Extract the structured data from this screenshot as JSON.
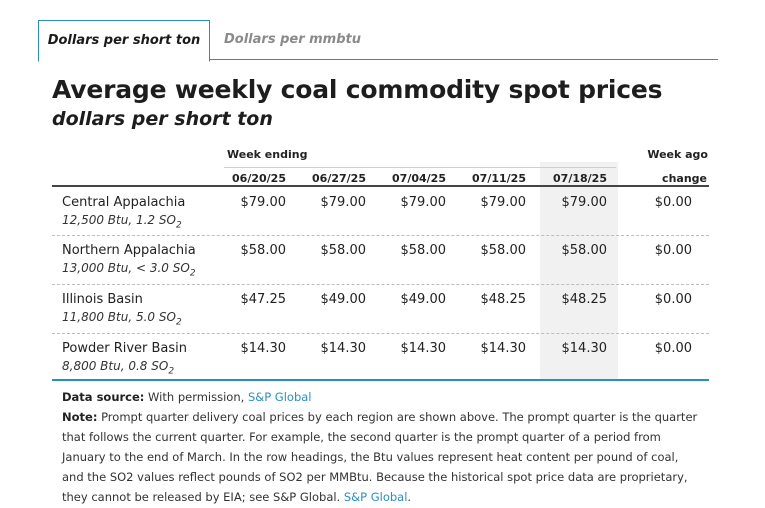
{
  "tabs": [
    {
      "label": "Dollars per short ton",
      "active": true
    },
    {
      "label": "Dollars per mmbtu",
      "active": false
    }
  ],
  "title": "Average weekly coal commodity spot prices",
  "subtitle": "dollars per short ton",
  "table": {
    "week_ending_label": "Week ending",
    "week_ago_label": "Week ago",
    "change_label": "change",
    "columns": [
      "06/20/25",
      "06/27/25",
      "07/04/25",
      "07/11/25",
      "07/18/25"
    ],
    "rows": [
      {
        "region": "Central Appalachia",
        "detail_prefix": "12,500 Btu, 1.2 SO",
        "detail_sub": "2",
        "values": [
          "$79.00",
          "$79.00",
          "$79.00",
          "$79.00",
          "$79.00"
        ],
        "change": "$0.00"
      },
      {
        "region": "Northern Appalachia",
        "detail_prefix": "13,000 Btu, < 3.0 SO",
        "detail_sub": "2",
        "values": [
          "$58.00",
          "$58.00",
          "$58.00",
          "$58.00",
          "$58.00"
        ],
        "change": "$0.00"
      },
      {
        "region": "Illinois Basin",
        "detail_prefix": "11,800 Btu, 5.0 SO",
        "detail_sub": "2",
        "values": [
          "$47.25",
          "$49.00",
          "$49.00",
          "$48.25",
          "$48.25"
        ],
        "change": "$0.00"
      },
      {
        "region": "Powder River Basin",
        "detail_prefix": "8,800 Btu, 0.8 SO",
        "detail_sub": "2",
        "values": [
          "$14.30",
          "$14.30",
          "$14.30",
          "$14.30",
          "$14.30"
        ],
        "change": "$0.00"
      }
    ]
  },
  "notes": {
    "source_label": "Data source:",
    "source_text": "With permission,",
    "source_link": "S&P Global",
    "note_label": "Note:",
    "note_text": "Prompt quarter delivery coal prices by each region are shown above. The prompt quarter is the quarter that follows the current quarter. For example, the second quarter is the prompt quarter of a period from January to the end of March. In the row headings, the Btu values represent heat content per pound of coal, and the SO2 values reflect pounds of SO2 per MMBtu. Because the historical spot price data are proprietary, they cannot be released by EIA; see S&P Global.",
    "note_link": "S&P Global",
    "note_end": "."
  },
  "colors": {
    "accent": "#2a8fc0",
    "highlight_column": "#f1f1f1"
  }
}
